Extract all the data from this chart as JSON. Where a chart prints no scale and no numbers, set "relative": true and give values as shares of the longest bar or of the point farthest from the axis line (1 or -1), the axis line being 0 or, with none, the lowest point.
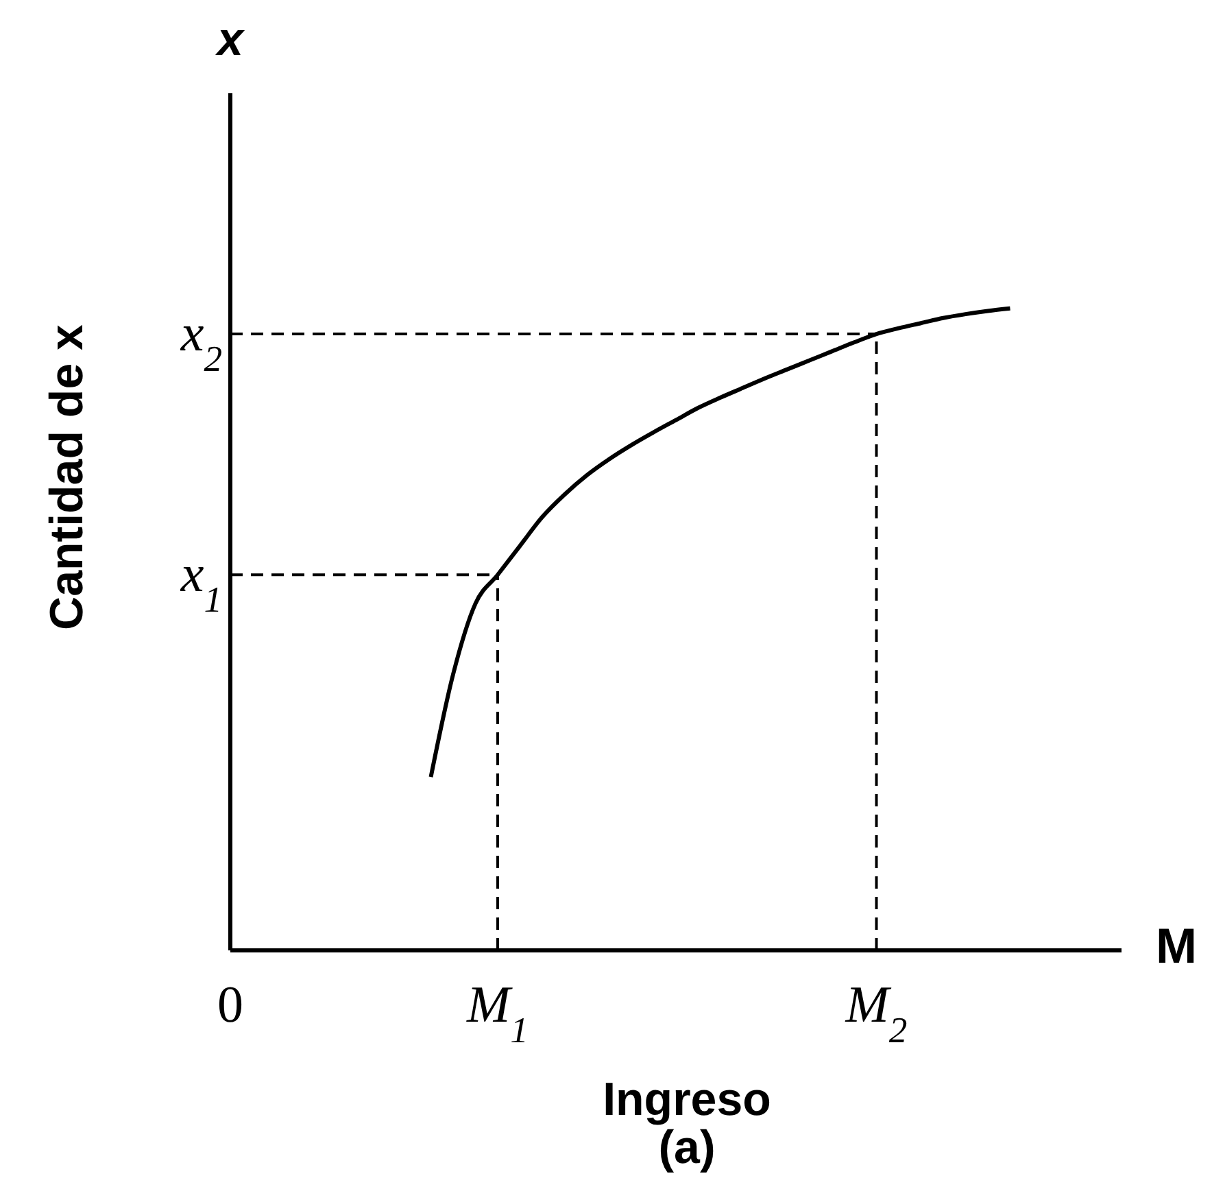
{
  "chart_data": {
    "type": "line",
    "relative": true,
    "xlabel": "Ingreso",
    "ylabel": "Cantidad de x",
    "annotations": [
      "x",
      "M",
      "(a)"
    ],
    "categories": [
      "0",
      null,
      null,
      null,
      null,
      null,
      null,
      null,
      null,
      null,
      null,
      null,
      "M$_{1}$",
      null,
      null,
      null,
      null,
      null,
      null,
      null,
      null,
      null,
      null,
      null,
      null,
      null,
      null,
      null,
      null,
      "M$_{2}$",
      null,
      null,
      null,
      null,
      null,
      null,
      null,
      null,
      null,
      null,
      null
    ],
    "series": [
      {
        "color": "#000000",
        "values": [
          null,
          null,
          null,
          null,
          null,
          null,
          null,
          null,
          null,
          0.27,
          0.43,
          0.54,
          0.585,
          0.63,
          0.675,
          0.71,
          0.74,
          0.765,
          0.787,
          0.807,
          0.826,
          0.845,
          0.861,
          0.876,
          0.891,
          0.905,
          0.919,
          0.933,
          0.947,
          0.96,
          0.969,
          0.977,
          0.985,
          0.991,
          0.996,
          1.0,
          null,
          null,
          null,
          null,
          null
        ]
      }
    ],
    "marker": "none",
    "line_style": "solid",
    "ref_lines": [
      {
        "axis": "y",
        "value": 0.585,
        "label": "x$_{1}$",
        "line_style": "dashed",
        "color": "#000000"
      },
      {
        "axis": "y",
        "value": 0.96,
        "label": "x$_{2}$",
        "line_style": "dashed",
        "color": "#000000"
      },
      {
        "axis": "x",
        "value": "M$_{1}$",
        "line_style": "dashed",
        "color": "#000000"
      },
      {
        "axis": "x",
        "value": "M$_{2}$",
        "line_style": "dashed",
        "color": "#000000"
      }
    ]
  }
}
